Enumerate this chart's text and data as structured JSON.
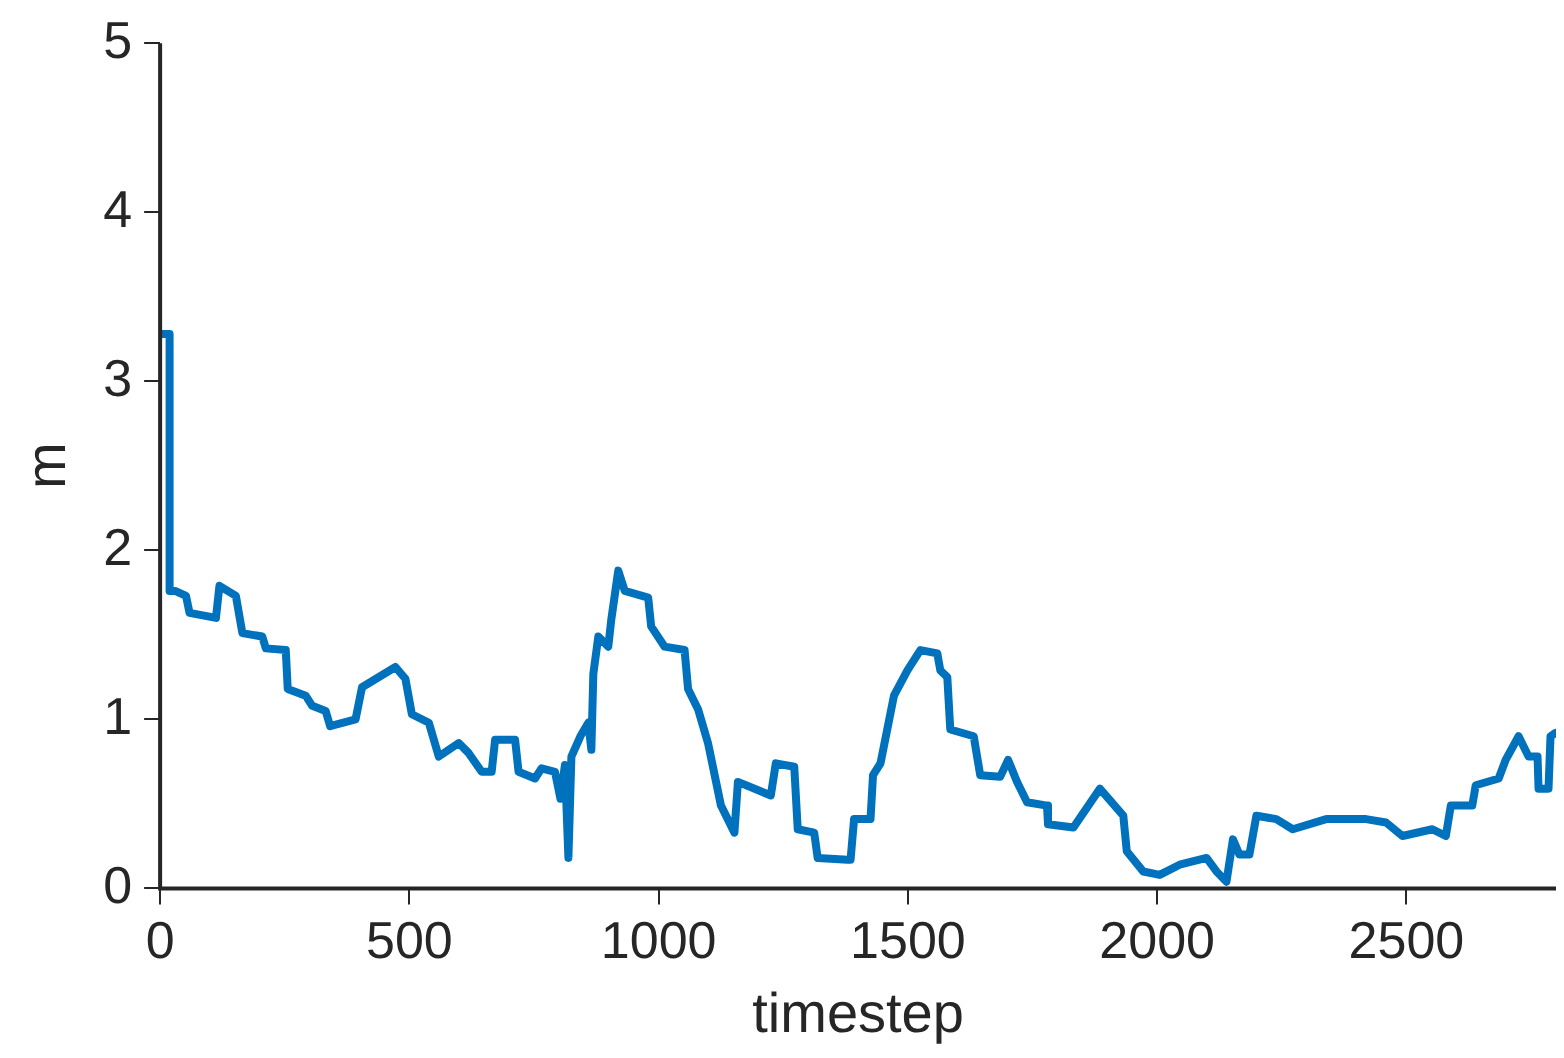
{
  "chart_data": {
    "type": "line",
    "xlabel": "timestep",
    "ylabel": "m",
    "xlim": [
      0,
      2800
    ],
    "ylim": [
      0,
      5
    ],
    "xticks": [
      0,
      500,
      1000,
      1500,
      2000,
      2500
    ],
    "yticks": [
      0,
      1,
      2,
      3,
      4,
      5
    ],
    "grid": false,
    "legend": false,
    "marker": "none",
    "line_style": "solid",
    "series": [
      {
        "color": "#0072bd",
        "x": [
          5,
          19,
          19,
          30,
          52,
          59,
          112,
          119,
          152,
          165,
          205,
          212,
          252,
          256,
          292,
          305,
          332,
          341,
          392,
          405,
          472,
          492,
          505,
          539,
          559,
          599,
          619,
          645,
          665,
          672,
          712,
          719,
          752,
          765,
          792,
          803,
          812,
          819,
          825,
          843,
          859,
          865,
          869,
          879,
          899,
          905,
          919,
          932,
          979,
          985,
          1012,
          1052,
          1059,
          1079,
          1099,
          1125,
          1152,
          1159,
          1225,
          1235,
          1272,
          1279,
          1312,
          1319,
          1379,
          1385,
          1392,
          1425,
          1430,
          1445,
          1472,
          1499,
          1525,
          1559,
          1565,
          1579,
          1585,
          1632,
          1645,
          1685,
          1701,
          1719,
          1739,
          1779,
          1781,
          1832,
          1885,
          1932,
          1939,
          1972,
          2005,
          2045,
          2099,
          2119,
          2139,
          2152,
          2165,
          2185,
          2199,
          2239,
          2272,
          2339,
          2419,
          2459,
          2492,
          2552,
          2579,
          2589,
          2632,
          2639,
          2685,
          2699,
          2725,
          2745,
          2763,
          2765,
          2785,
          2789,
          2799
        ],
        "values": [
          3.28,
          3.28,
          1.76,
          1.76,
          1.73,
          1.63,
          1.6,
          1.79,
          1.73,
          1.51,
          1.49,
          1.42,
          1.41,
          1.18,
          1.14,
          1.08,
          1.05,
          0.96,
          1.0,
          1.19,
          1.31,
          1.24,
          1.03,
          0.98,
          0.78,
          0.86,
          0.8,
          0.69,
          0.69,
          0.88,
          0.88,
          0.69,
          0.65,
          0.71,
          0.69,
          0.53,
          0.73,
          0.18,
          0.78,
          0.9,
          0.98,
          0.82,
          1.27,
          1.49,
          1.43,
          1.59,
          1.88,
          1.76,
          1.72,
          1.55,
          1.43,
          1.41,
          1.18,
          1.06,
          0.86,
          0.49,
          0.33,
          0.63,
          0.55,
          0.74,
          0.72,
          0.35,
          0.33,
          0.18,
          0.17,
          0.17,
          0.41,
          0.41,
          0.67,
          0.74,
          1.14,
          1.29,
          1.41,
          1.39,
          1.29,
          1.25,
          0.94,
          0.9,
          0.67,
          0.66,
          0.76,
          0.63,
          0.51,
          0.49,
          0.38,
          0.36,
          0.59,
          0.43,
          0.22,
          0.1,
          0.08,
          0.14,
          0.18,
          0.1,
          0.04,
          0.29,
          0.2,
          0.2,
          0.43,
          0.41,
          0.35,
          0.41,
          0.41,
          0.39,
          0.31,
          0.35,
          0.31,
          0.49,
          0.49,
          0.61,
          0.65,
          0.76,
          0.9,
          0.78,
          0.78,
          0.59,
          0.59,
          0.9,
          0.92
        ]
      }
    ]
  }
}
